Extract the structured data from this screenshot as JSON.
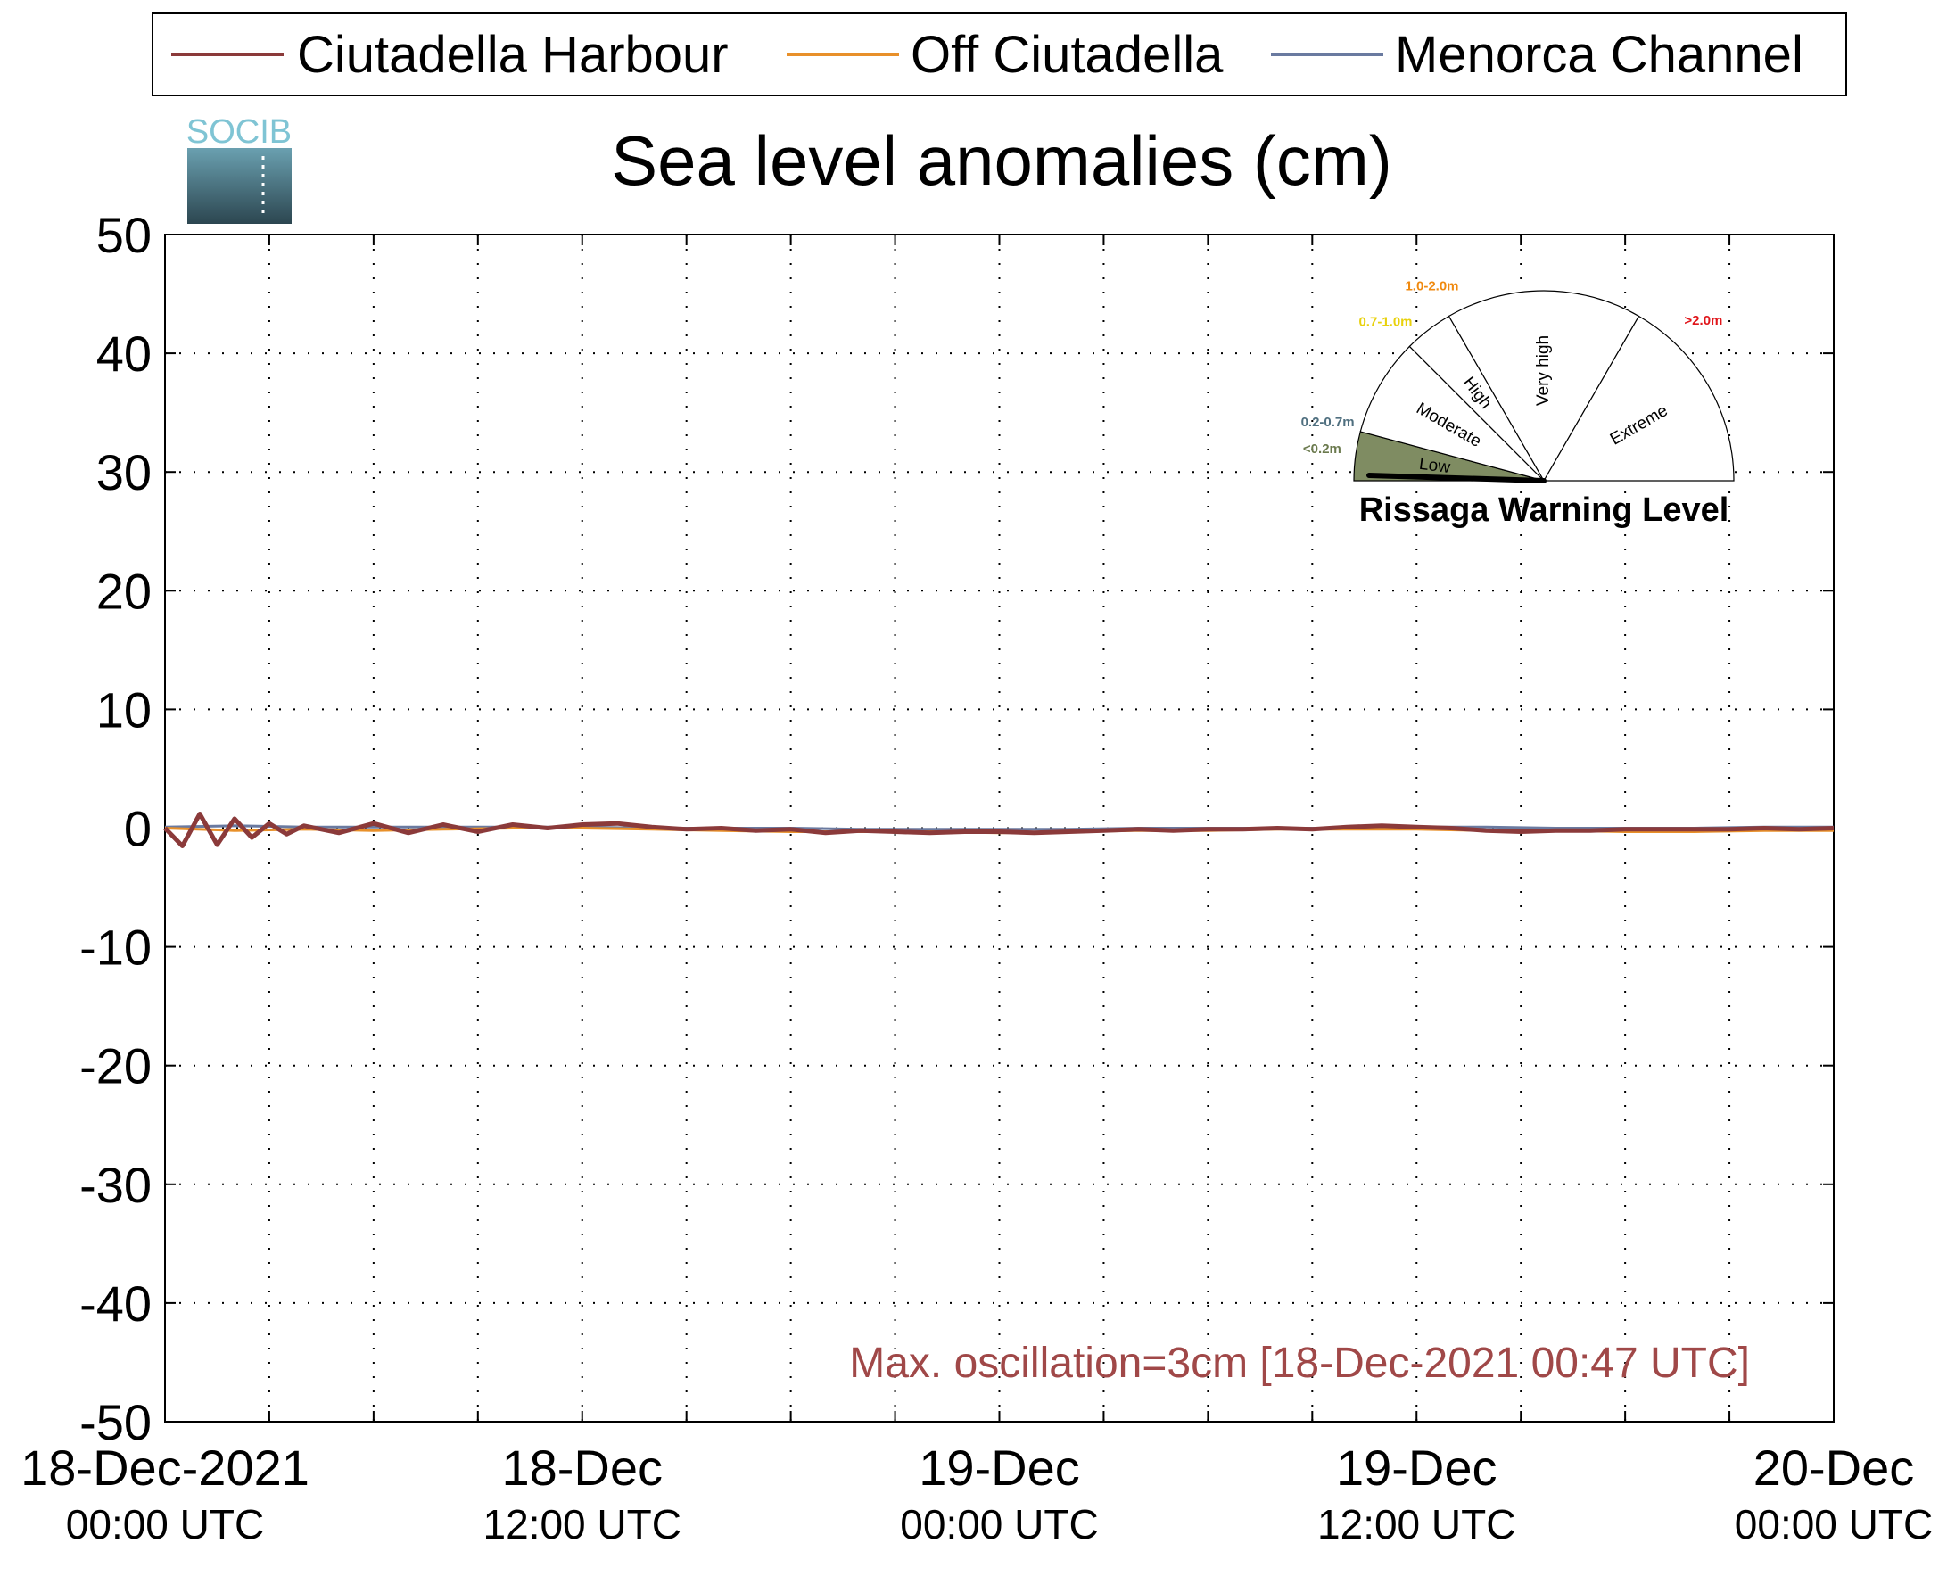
{
  "logo": {
    "text": "SOCIB"
  },
  "chart_data": {
    "type": "line",
    "title": "Sea level anomalies (cm)",
    "xlabel": "",
    "ylabel": "",
    "ylim": [
      -50,
      50
    ],
    "yticks": [
      50,
      40,
      30,
      20,
      10,
      0,
      -10,
      -20,
      -30,
      -40,
      -50
    ],
    "xlim": [
      "2021-12-18 00:00",
      "2021-12-20 00:00"
    ],
    "xticks": [
      {
        "line1": "18-Dec-2021",
        "line2": "00:00 UTC"
      },
      {
        "line1": "18-Dec",
        "line2": "12:00 UTC"
      },
      {
        "line1": "19-Dec",
        "line2": "00:00 UTC"
      },
      {
        "line1": "19-Dec",
        "line2": "12:00 UTC"
      },
      {
        "line1": "20-Dec",
        "line2": "00:00 UTC"
      }
    ],
    "grid": true,
    "legend_position": "top",
    "series": [
      {
        "name": "Ciutadella Harbour",
        "color": "#8b3a3a",
        "x_hours": [
          0,
          0.5,
          1,
          1.5,
          2,
          2.5,
          3,
          3.5,
          4,
          5,
          6,
          7,
          8,
          9,
          10,
          11,
          12,
          13,
          14,
          15,
          16,
          17,
          18,
          19,
          20,
          21,
          22,
          23,
          24,
          25,
          26,
          27,
          28,
          29,
          30,
          31,
          32,
          33,
          34,
          35,
          36,
          37,
          38,
          39,
          40,
          41,
          42,
          43,
          44,
          45,
          46,
          47,
          48
        ],
        "values": [
          0,
          -1.5,
          1.2,
          -1.4,
          0.8,
          -0.8,
          0.4,
          -0.5,
          0.2,
          -0.4,
          0.4,
          -0.4,
          0.3,
          -0.3,
          0.3,
          0,
          0.3,
          0.4,
          0.1,
          -0.1,
          0,
          -0.2,
          -0.1,
          -0.4,
          -0.2,
          -0.3,
          -0.4,
          -0.3,
          -0.3,
          -0.4,
          -0.3,
          -0.2,
          -0.1,
          -0.2,
          -0.1,
          -0.1,
          0,
          -0.1,
          0.1,
          0.2,
          0.1,
          0,
          -0.2,
          -0.3,
          -0.2,
          -0.2,
          -0.1,
          -0.1,
          -0.1,
          -0.1,
          0,
          -0.1,
          0
        ]
      },
      {
        "name": "Off Ciutadella",
        "color": "#e8902a",
        "x_hours": [
          0,
          2,
          4,
          6,
          8,
          10,
          12,
          14,
          16,
          18,
          20,
          22,
          24,
          26,
          28,
          30,
          32,
          34,
          36,
          38,
          40,
          42,
          44,
          46,
          48
        ],
        "values": [
          0,
          -0.2,
          -0.1,
          -0.2,
          -0.1,
          0,
          0,
          -0.1,
          -0.2,
          -0.3,
          -0.3,
          -0.3,
          -0.4,
          -0.3,
          -0.2,
          -0.2,
          -0.1,
          -0.1,
          -0.1,
          -0.2,
          -0.2,
          -0.3,
          -0.3,
          -0.2,
          -0.2
        ]
      },
      {
        "name": "Menorca Channel",
        "color": "#6a7aa0",
        "x_hours": [
          0,
          2,
          4,
          6,
          8,
          10,
          12,
          14,
          16,
          18,
          20,
          22,
          24,
          26,
          28,
          30,
          32,
          34,
          36,
          38,
          40,
          42,
          44,
          46,
          48
        ],
        "values": [
          0.1,
          0.2,
          0.1,
          0.1,
          0.1,
          0.1,
          0.1,
          0,
          0,
          0,
          -0.1,
          -0.1,
          -0.1,
          -0.1,
          0,
          0,
          0,
          0,
          0.1,
          0.1,
          0,
          0,
          0,
          0.1,
          0.1
        ]
      }
    ],
    "annotation": "Max. oscillation=3cm [18-Dec-2021 00:47 UTC]",
    "annotation_color": "#a04848"
  },
  "gauge": {
    "title": "Rissaga Warning Level",
    "sectors": [
      {
        "label": "Low",
        "range": "<0.2m",
        "range_color": "#6b7a4e",
        "fill": "#7f8c62"
      },
      {
        "label": "Moderate",
        "range": "0.2-0.7m",
        "range_color": "#4f6f7f",
        "fill": "#ffffff"
      },
      {
        "label": "High",
        "range": "0.7-1.0m",
        "range_color": "#e8d10c",
        "fill": "#ffffff"
      },
      {
        "label": "Very high",
        "range": "1.0-2.0m",
        "range_color": "#f08a10",
        "fill": "#ffffff"
      },
      {
        "label": "Extreme",
        "range": ">2.0m",
        "range_color": "#e0161b",
        "fill": "#ffffff"
      }
    ],
    "active_level": "Low"
  }
}
